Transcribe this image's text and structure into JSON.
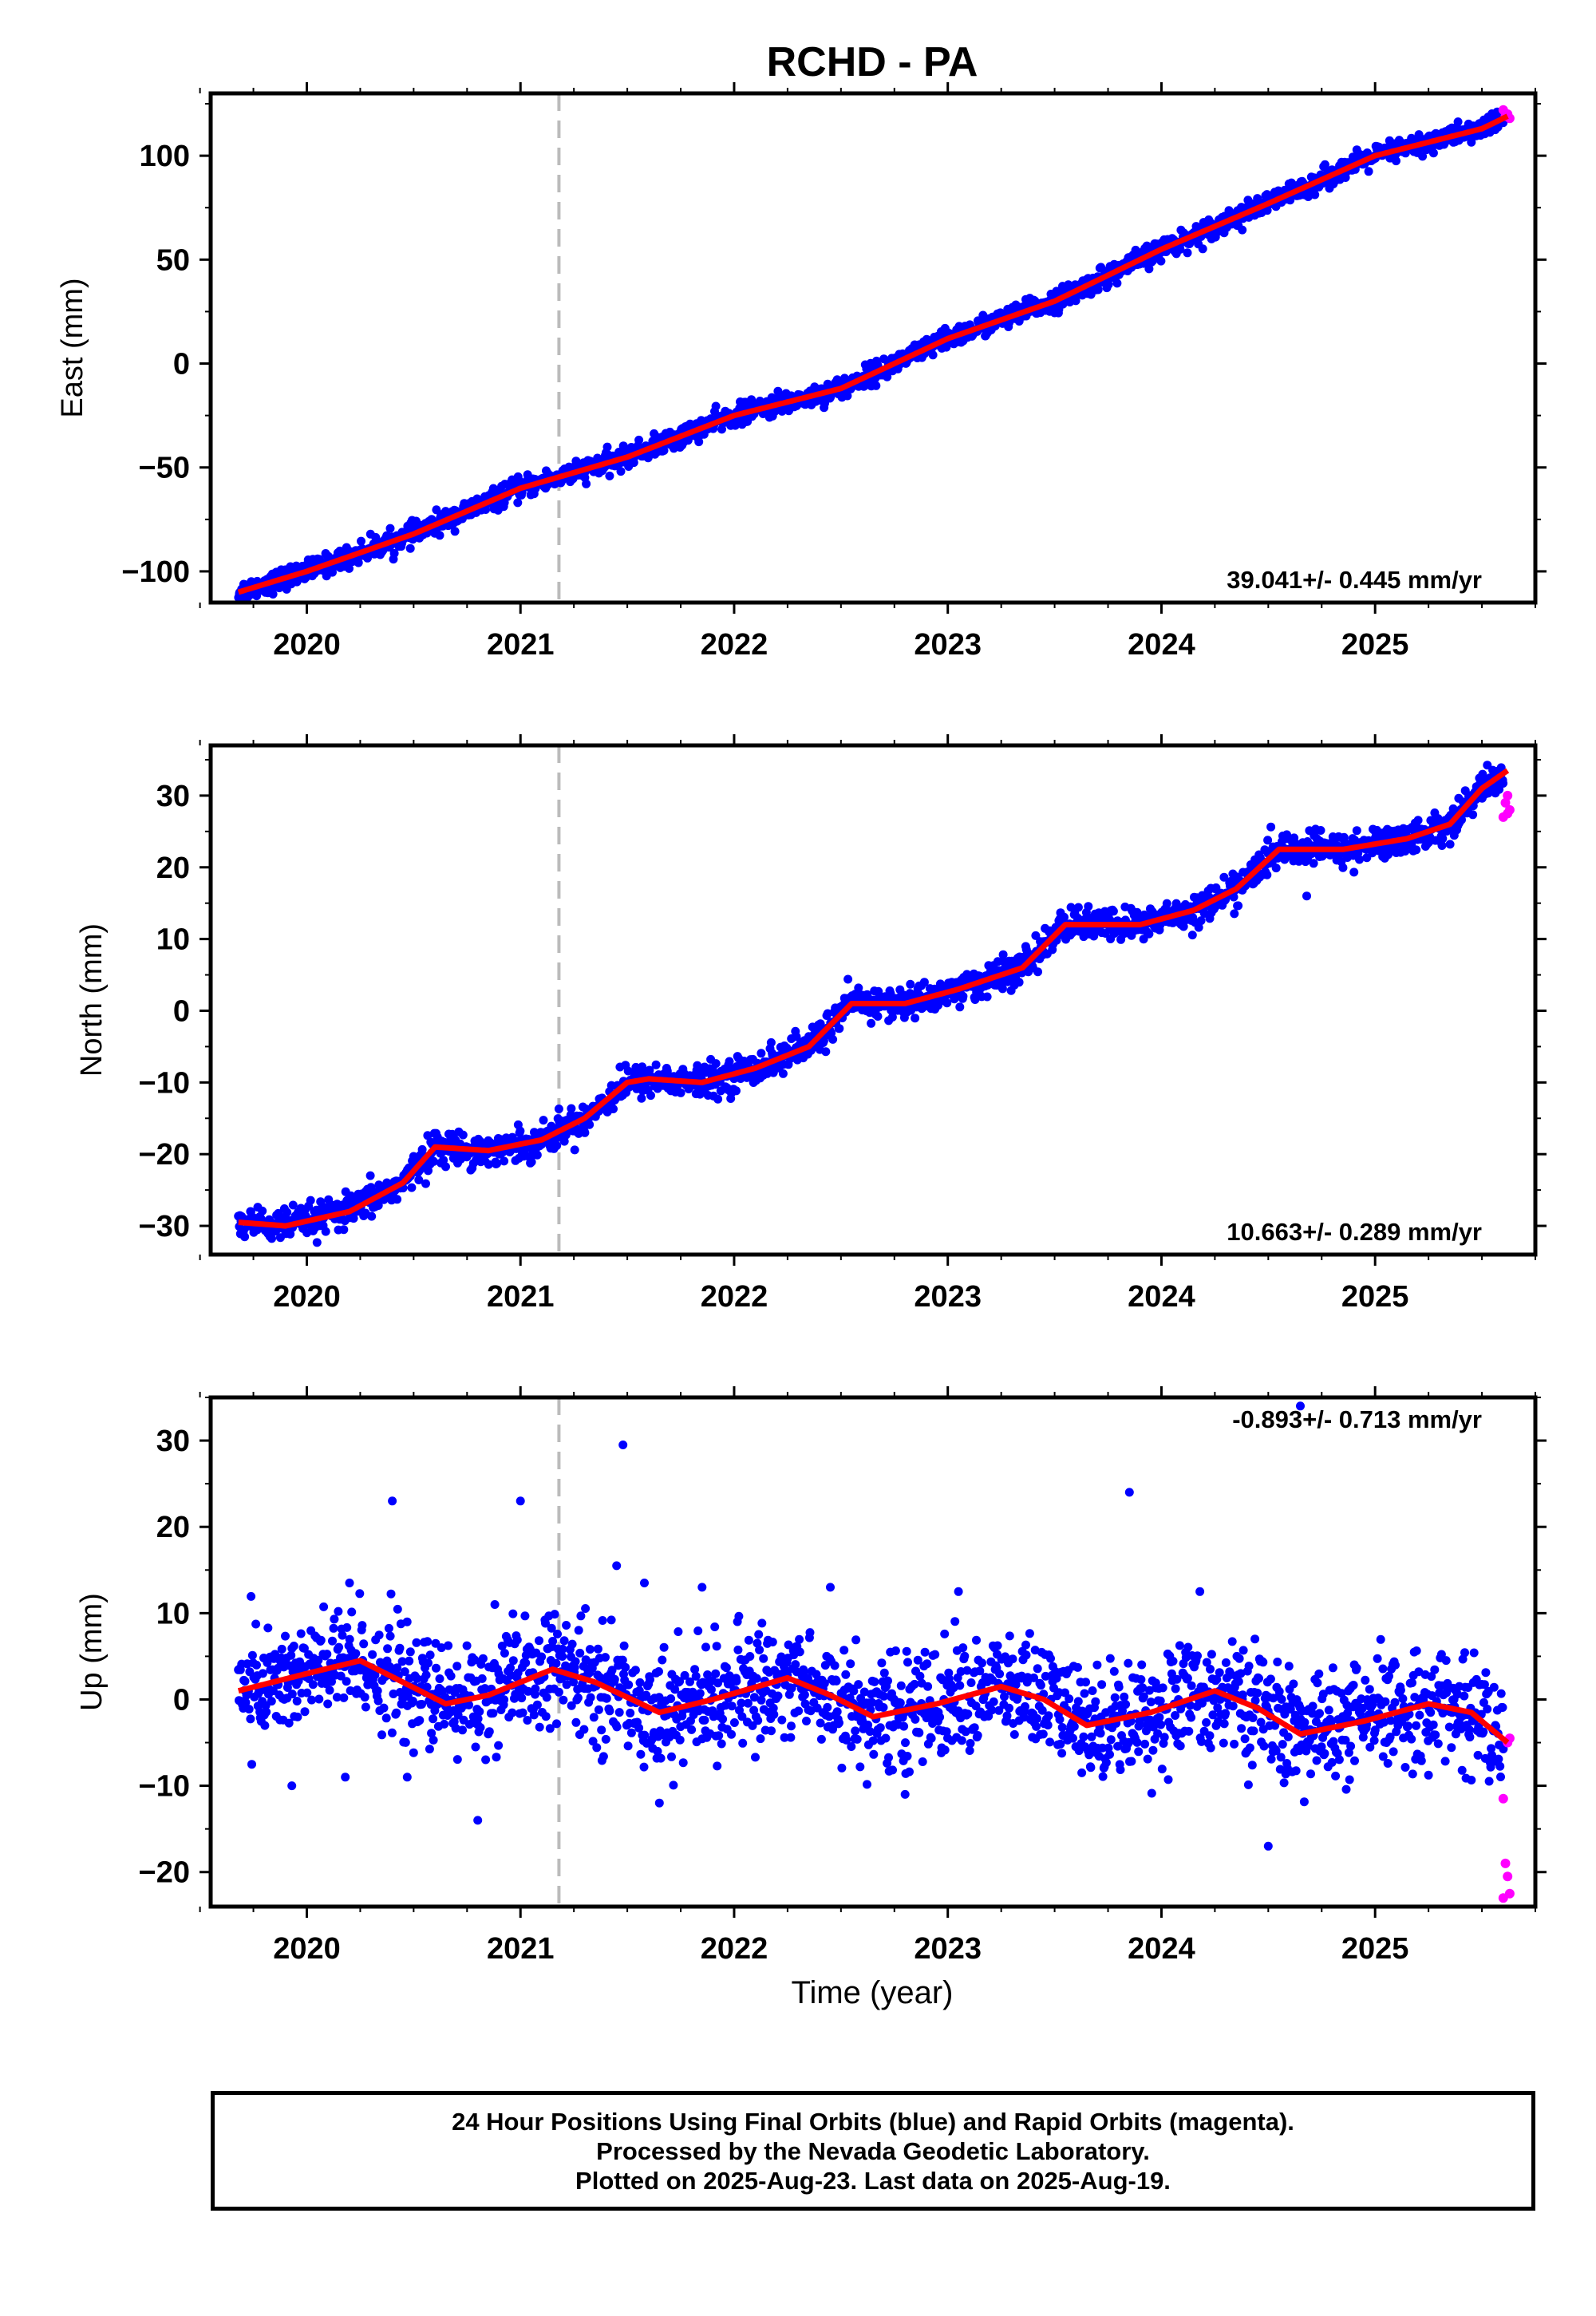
{
  "chart_data": {
    "title": "RCHD - PA",
    "xlabel": "Time (year)",
    "x_ticks": [
      "2020",
      "2021",
      "2022",
      "2023",
      "2024",
      "2025"
    ],
    "xlim": [
      2019.55,
      2025.75
    ],
    "antenna_change_epoch": 2021.18,
    "colors": {
      "final_orbits": "#0000ff",
      "rapid_orbits": "#ff00ff",
      "trend": "#ff0000",
      "marker_line": "#bbbbbb"
    },
    "panels": [
      {
        "type": "scatter",
        "ylabel": "East (mm)",
        "ylim": [
          -115,
          130
        ],
        "y_ticks": [
          -100,
          -50,
          0,
          50,
          100
        ],
        "rate_label": "39.041+/- 0.445 mm/yr",
        "trend": {
          "x": [
            2019.68,
            2020.0,
            2020.5,
            2021.0,
            2021.5,
            2022.0,
            2022.5,
            2023.0,
            2023.5,
            2024.0,
            2024.5,
            2025.0,
            2025.5,
            2025.62
          ],
          "y": [
            -110,
            -100,
            -82,
            -60,
            -45,
            -25,
            -12,
            12,
            30,
            55,
            77,
            100,
            113,
            119
          ]
        },
        "scatter_sigma": 2.5,
        "outliers": [],
        "rapid": [
          [
            2025.6,
            122
          ],
          [
            2025.61,
            119
          ],
          [
            2025.62,
            120
          ],
          [
            2025.63,
            118
          ]
        ]
      },
      {
        "type": "scatter",
        "ylabel": "North (mm)",
        "ylim": [
          -34,
          37
        ],
        "y_ticks": [
          -30,
          -20,
          -10,
          0,
          10,
          20,
          30
        ],
        "rate_label": "10.663+/- 0.289 mm/yr",
        "trend": {
          "x": [
            2019.68,
            2019.9,
            2020.2,
            2020.45,
            2020.6,
            2020.85,
            2021.1,
            2021.3,
            2021.5,
            2021.6,
            2021.85,
            2022.1,
            2022.35,
            2022.55,
            2022.8,
            2023.05,
            2023.35,
            2023.55,
            2023.9,
            2024.15,
            2024.35,
            2024.55,
            2024.85,
            2025.15,
            2025.35,
            2025.5,
            2025.62
          ],
          "y": [
            -29.5,
            -30,
            -28,
            -24,
            -19,
            -19.5,
            -18,
            -15,
            -10,
            -9.5,
            -10,
            -8,
            -5,
            1,
            1,
            3,
            6,
            12,
            12,
            14,
            17,
            22.5,
            22.5,
            24,
            26,
            31,
            33.5
          ]
        },
        "scatter_sigma": 1.1,
        "outliers": [
          [
            2024.68,
            16
          ]
        ],
        "rapid": [
          [
            2025.6,
            27
          ],
          [
            2025.61,
            29
          ],
          [
            2025.62,
            30
          ],
          [
            2025.63,
            28
          ],
          [
            2025.62,
            27.5
          ]
        ]
      },
      {
        "type": "scatter",
        "ylabel": "Up (mm)",
        "ylim": [
          -24,
          35
        ],
        "y_ticks": [
          -20,
          -10,
          0,
          10,
          20,
          30
        ],
        "rate_label": "-0.893+/- 0.713 mm/yr",
        "trend": {
          "x": [
            2019.68,
            2020.0,
            2020.25,
            2020.45,
            2020.65,
            2020.85,
            2021.15,
            2021.35,
            2021.65,
            2021.9,
            2022.25,
            2022.45,
            2022.65,
            2022.95,
            2023.25,
            2023.45,
            2023.65,
            2023.95,
            2024.25,
            2024.45,
            2024.65,
            2024.95,
            2025.25,
            2025.45,
            2025.62
          ],
          "y": [
            1,
            3,
            4.5,
            2,
            -0.5,
            0.5,
            3.5,
            2,
            -1.5,
            0,
            2.5,
            0.5,
            -2,
            -0.5,
            1.5,
            0,
            -3,
            -1.5,
            1,
            -1,
            -4,
            -2.5,
            -0.5,
            -1.5,
            -5
          ]
        },
        "scatter_sigma": 3.2,
        "outliers": [
          [
            2020.4,
            23
          ],
          [
            2021.0,
            23
          ],
          [
            2021.48,
            29.5
          ],
          [
            2023.85,
            24
          ],
          [
            2024.65,
            34
          ],
          [
            2024.5,
            -17
          ],
          [
            2020.8,
            -14
          ],
          [
            2019.93,
            -10
          ],
          [
            2020.18,
            -9
          ],
          [
            2020.47,
            -9
          ],
          [
            2021.65,
            -12
          ],
          [
            2022.8,
            -11
          ],
          [
            2021.45,
            15.5
          ],
          [
            2021.58,
            13.5
          ],
          [
            2022.45,
            13
          ],
          [
            2024.18,
            12.5
          ],
          [
            2020.2,
            13.5
          ],
          [
            2020.88,
            11
          ],
          [
            2021.85,
            13
          ],
          [
            2023.05,
            12.5
          ]
        ],
        "rapid": [
          [
            2025.6,
            -11.5
          ],
          [
            2025.61,
            -19
          ],
          [
            2025.62,
            -20.5
          ],
          [
            2025.63,
            -22.5
          ],
          [
            2025.6,
            -23
          ],
          [
            2025.62,
            -5
          ],
          [
            2025.63,
            -4.5
          ]
        ]
      }
    ]
  },
  "footer": {
    "line1": "24 Hour Positions Using Final Orbits (blue) and Rapid Orbits (magenta).",
    "line2": "Processed by the Nevada Geodetic Laboratory.",
    "line3": "Plotted on 2025-Aug-23. Last data on 2025-Aug-19."
  }
}
